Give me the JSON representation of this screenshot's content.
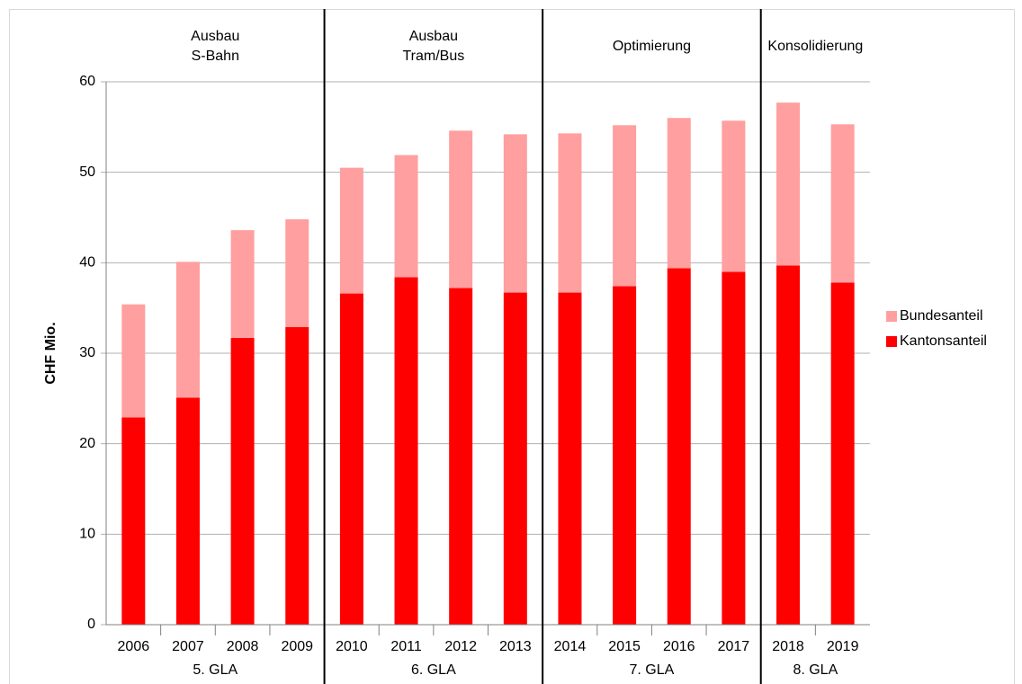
{
  "chart_data": {
    "type": "stacked-bar",
    "ylabel": "CHF Mio.",
    "groups": [
      {
        "name": "5. GLA",
        "phase": [
          "Ausbau",
          "S-Bahn"
        ],
        "categories": [
          "2006",
          "2007",
          "2008",
          "2009"
        ]
      },
      {
        "name": "6. GLA",
        "phase": [
          "Ausbau",
          "Tram/Bus"
        ],
        "categories": [
          "2010",
          "2011",
          "2012",
          "2013"
        ]
      },
      {
        "name": "7. GLA",
        "phase": [
          "Optimierung"
        ],
        "categories": [
          "2014",
          "2015",
          "2016",
          "2017"
        ]
      },
      {
        "name": "8. GLA",
        "phase": [
          "Konsolidierung"
        ],
        "categories": [
          "2018",
          "2019"
        ]
      }
    ],
    "series": [
      {
        "name": "Kantonsanteil",
        "color": "#ff0000",
        "values": [
          22.9,
          25.1,
          31.7,
          32.9,
          36.6,
          38.4,
          37.2,
          36.7,
          36.7,
          37.4,
          39.4,
          39.0,
          39.7,
          37.8
        ]
      },
      {
        "name": "Bundesanteil",
        "color": "#ff9f9f",
        "values": [
          12.5,
          15.0,
          11.9,
          11.9,
          13.9,
          13.5,
          17.4,
          17.5,
          17.6,
          17.8,
          16.6,
          16.7,
          18.0,
          17.5
        ]
      }
    ],
    "ylim": [
      0,
      60
    ],
    "yticks": [
      0,
      10,
      20,
      30,
      40,
      50,
      60
    ],
    "grid": true,
    "legend": "right"
  }
}
